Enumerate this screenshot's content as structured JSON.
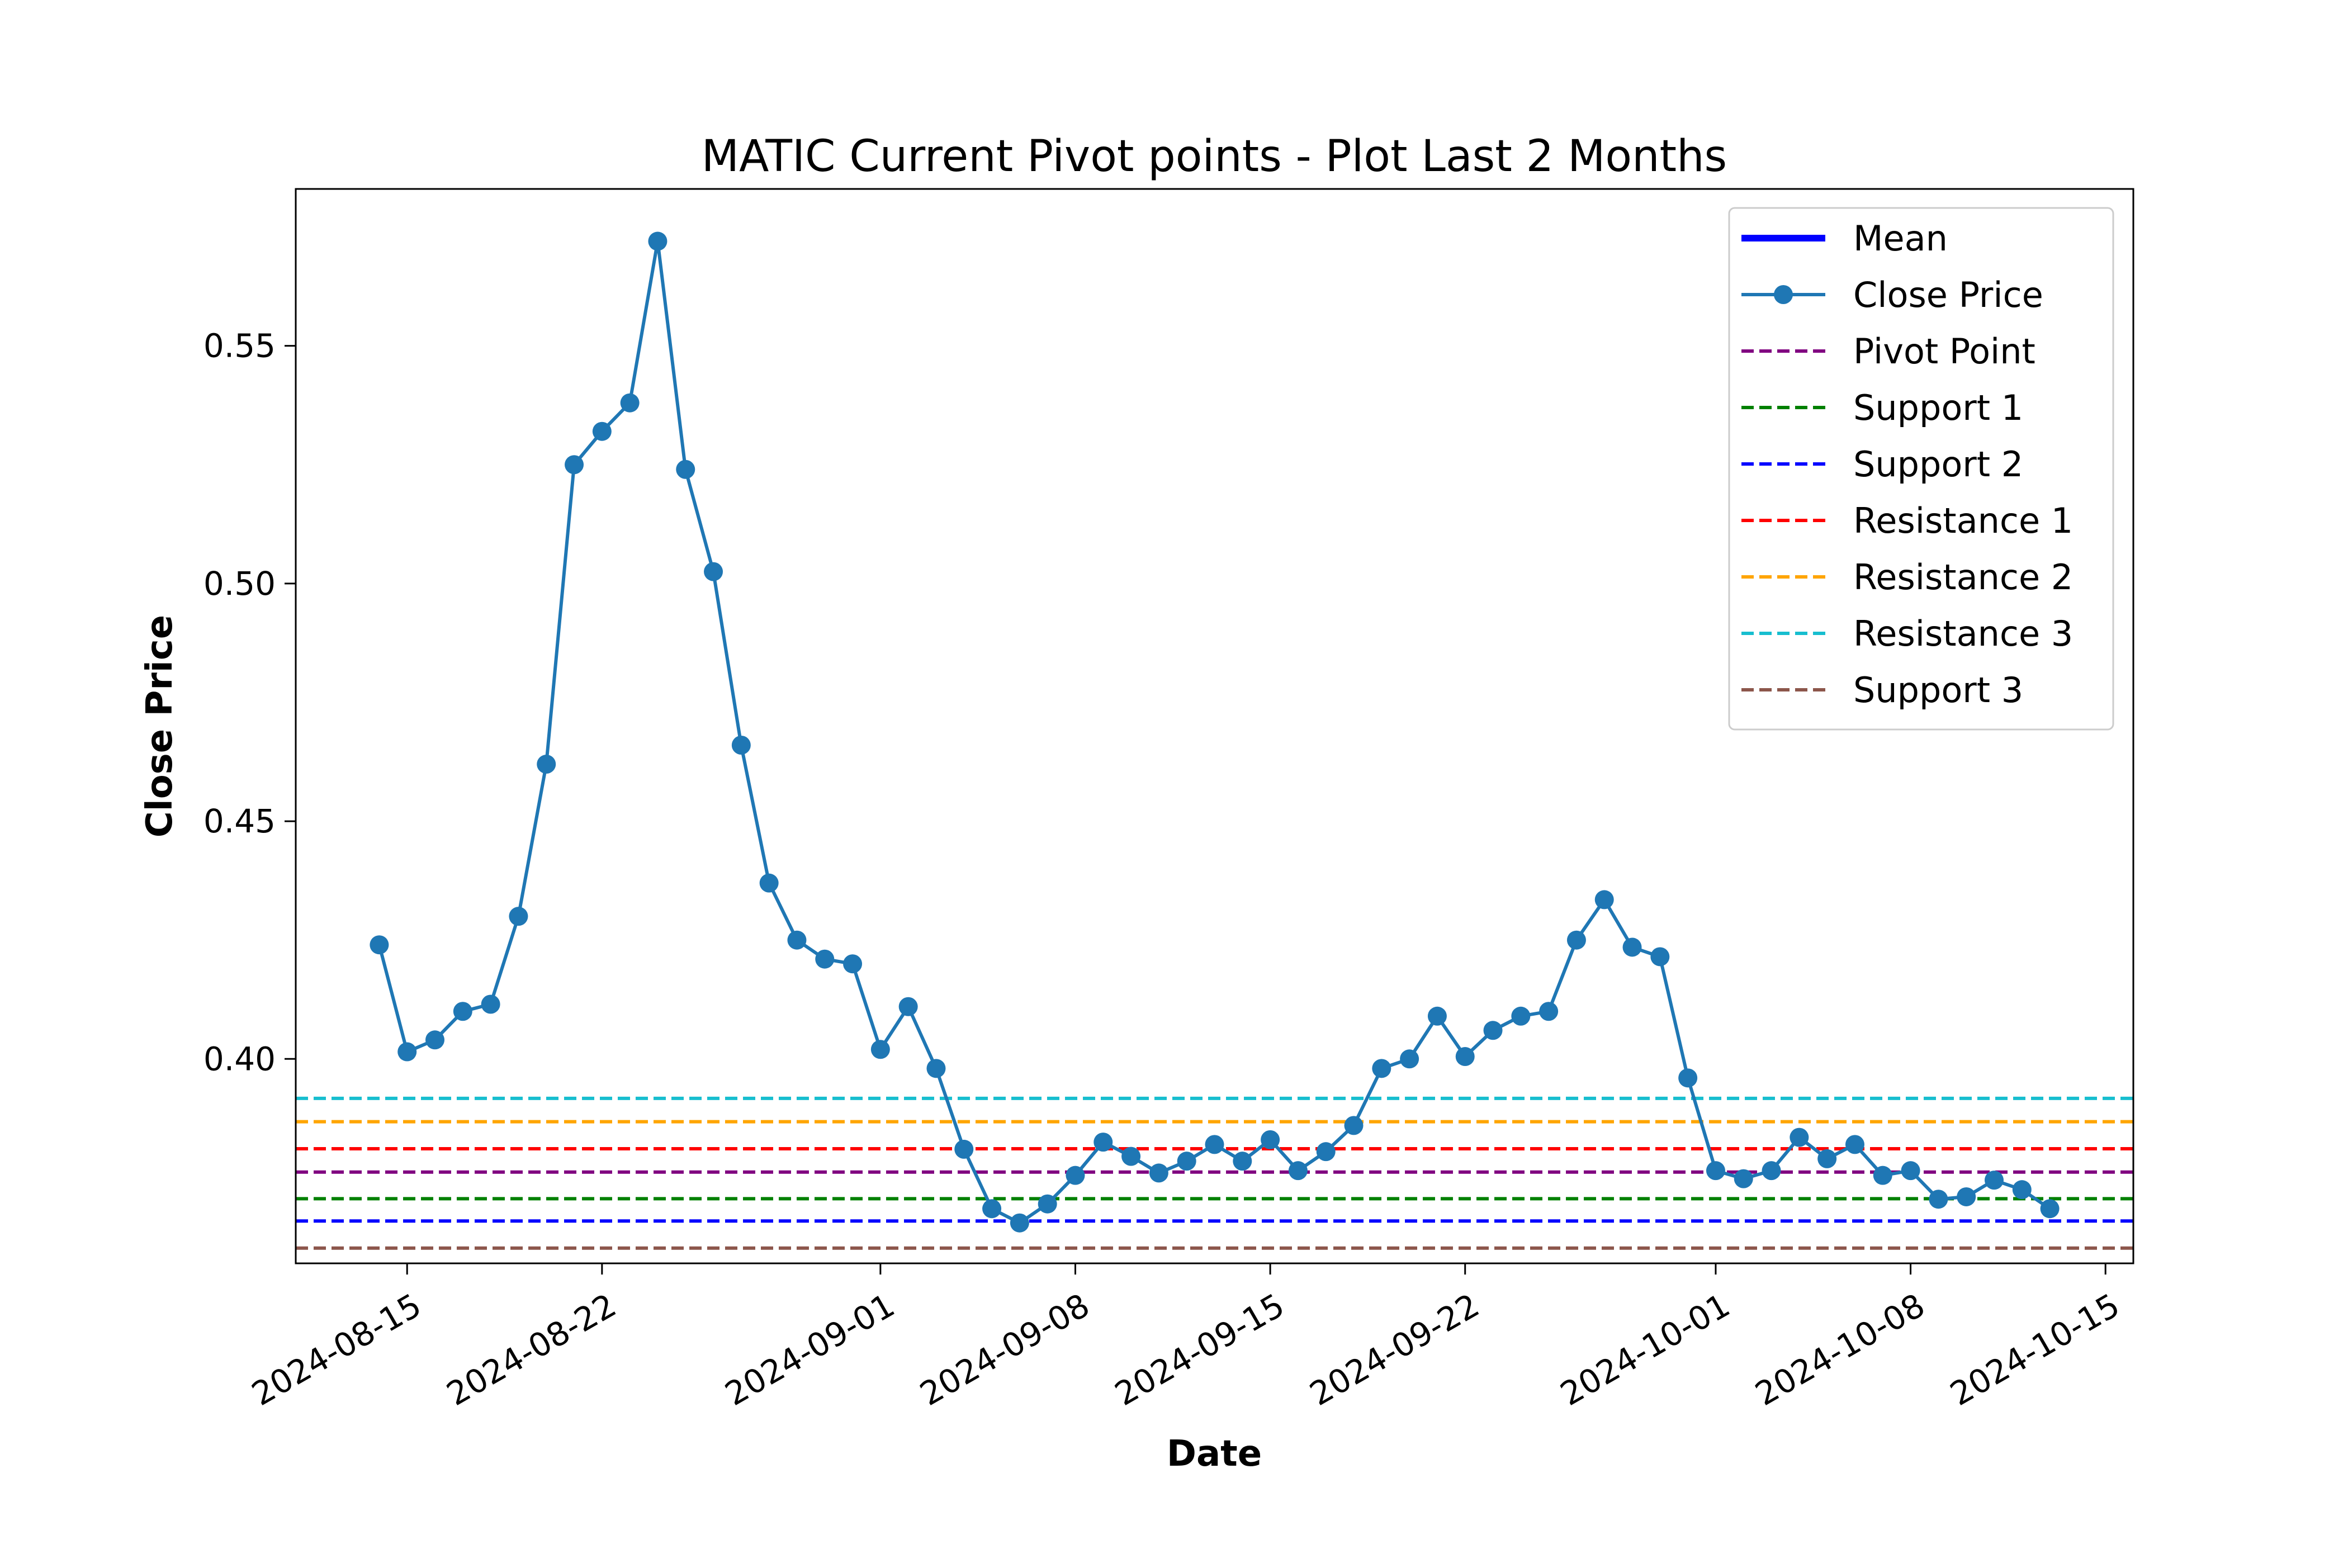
{
  "chart_data": {
    "type": "line",
    "title": "MATIC Current Pivot points - Plot Last 2 Months",
    "xlabel": "Date",
    "ylabel": "Close Price",
    "xlim": [
      "2024-08-11",
      "2024-10-16"
    ],
    "ylim": [
      0.357,
      0.583
    ],
    "x_ticks": [
      "2024-08-15",
      "2024-08-22",
      "2024-09-01",
      "2024-09-08",
      "2024-09-15",
      "2024-09-22",
      "2024-10-01",
      "2024-10-08",
      "2024-10-15"
    ],
    "y_ticks": [
      "0.40",
      "0.45",
      "0.50",
      "0.55"
    ],
    "grid": false,
    "legend_position": "upper right",
    "series": [
      {
        "name": "Close Price",
        "color": "#1f77b4",
        "marker": "circle",
        "x": [
          "2024-08-14",
          "2024-08-15",
          "2024-08-16",
          "2024-08-17",
          "2024-08-18",
          "2024-08-19",
          "2024-08-20",
          "2024-08-21",
          "2024-08-22",
          "2024-08-23",
          "2024-08-24",
          "2024-08-25",
          "2024-08-26",
          "2024-08-27",
          "2024-08-28",
          "2024-08-29",
          "2024-08-30",
          "2024-08-31",
          "2024-09-01",
          "2024-09-02",
          "2024-09-03",
          "2024-09-04",
          "2024-09-05",
          "2024-09-06",
          "2024-09-07",
          "2024-09-08",
          "2024-09-09",
          "2024-09-10",
          "2024-09-11",
          "2024-09-12",
          "2024-09-13",
          "2024-09-14",
          "2024-09-15",
          "2024-09-16",
          "2024-09-17",
          "2024-09-18",
          "2024-09-19",
          "2024-09-20",
          "2024-09-21",
          "2024-09-22",
          "2024-09-23",
          "2024-09-24",
          "2024-09-25",
          "2024-09-26",
          "2024-09-27",
          "2024-09-28",
          "2024-09-29",
          "2024-09-30",
          "2024-10-01",
          "2024-10-02",
          "2024-10-03",
          "2024-10-04",
          "2024-10-05",
          "2024-10-06",
          "2024-10-07",
          "2024-10-08",
          "2024-10-09",
          "2024-10-10",
          "2024-10-11",
          "2024-10-12",
          "2024-10-13"
        ],
        "values": [
          0.424,
          0.4015,
          0.404,
          0.41,
          0.4115,
          0.43,
          0.462,
          0.525,
          0.532,
          0.538,
          0.572,
          0.524,
          0.5025,
          0.466,
          0.437,
          0.425,
          0.421,
          0.42,
          0.402,
          0.411,
          0.398,
          0.381,
          0.3685,
          0.3655,
          0.3695,
          0.3755,
          0.3825,
          0.3795,
          0.376,
          0.3785,
          0.382,
          0.3785,
          0.383,
          0.3765,
          0.3805,
          0.386,
          0.398,
          0.4,
          0.409,
          0.4005,
          0.406,
          0.409,
          0.41,
          0.425,
          0.4335,
          0.4235,
          0.4215,
          0.396,
          0.3765,
          0.3748,
          0.3765,
          0.3835,
          0.379,
          0.382,
          0.3755,
          0.3765,
          0.3705,
          0.371,
          0.3745,
          0.3725,
          0.3685
        ]
      }
    ],
    "mean_series": {
      "name": "Mean",
      "color": "#0000ff"
    },
    "reference_lines": [
      {
        "name": "Pivot Point",
        "value": 0.3762,
        "color": "#800080",
        "style": "dashed"
      },
      {
        "name": "Support 1",
        "value": 0.3706,
        "color": "#008000",
        "style": "dashed"
      },
      {
        "name": "Support 2",
        "value": 0.3659,
        "color": "#0000ff",
        "style": "dashed"
      },
      {
        "name": "Resistance 1",
        "value": 0.3811,
        "color": "#ff0000",
        "style": "dashed"
      },
      {
        "name": "Resistance 2",
        "value": 0.3868,
        "color": "#ffa500",
        "style": "dashed"
      },
      {
        "name": "Resistance 3",
        "value": 0.3917,
        "color": "#17becf",
        "style": "dashed"
      },
      {
        "name": "Support 3",
        "value": 0.3602,
        "color": "#8c564b",
        "style": "dashed"
      }
    ],
    "legend_entries": [
      {
        "name": "Mean",
        "color": "#0000ff",
        "style": "solid-thick"
      },
      {
        "name": "Close Price",
        "color": "#1f77b4",
        "style": "line-marker"
      },
      {
        "name": "Pivot Point",
        "color": "#800080",
        "style": "dashed"
      },
      {
        "name": "Support 1",
        "color": "#008000",
        "style": "dashed"
      },
      {
        "name": "Support 2",
        "color": "#0000ff",
        "style": "dashed"
      },
      {
        "name": "Resistance 1",
        "color": "#ff0000",
        "style": "dashed"
      },
      {
        "name": "Resistance 2",
        "color": "#ffa500",
        "style": "dashed"
      },
      {
        "name": "Resistance 3",
        "color": "#17becf",
        "style": "dashed"
      },
      {
        "name": "Support 3",
        "color": "#8c564b",
        "style": "dashed"
      }
    ]
  }
}
